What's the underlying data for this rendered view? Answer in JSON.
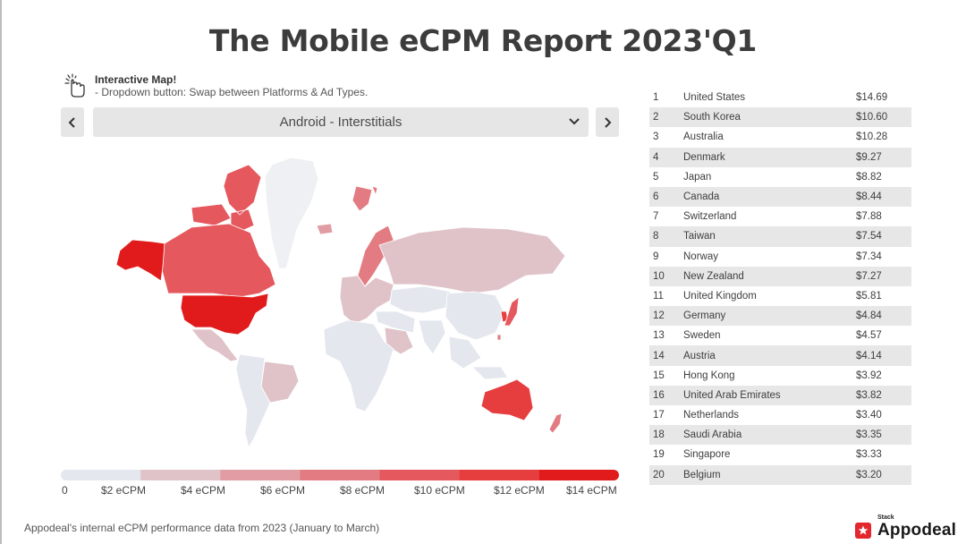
{
  "title": "The Mobile eCPM Report 2023'Q1",
  "hint": {
    "title": "Interactive Map!",
    "subtitle": "- Dropdown button: Swap between Platforms & Ad Types.",
    "icon": "pointing-hand-icon"
  },
  "selector": {
    "prev_icon": "chevron-left-icon",
    "next_icon": "chevron-right-icon",
    "selected": "Android - Interstitials",
    "dropdown_icon": "chevron-down-icon"
  },
  "colors": {
    "scale": [
      "#e4e7ee",
      "#e0c3c8",
      "#e19da3",
      "#e27c82",
      "#e5585d",
      "#e63d3f",
      "#e11b1b"
    ],
    "no_data": "#eef0f3",
    "brand": "#e3272d"
  },
  "chart_data": {
    "type": "choropleth",
    "title": "The Mobile eCPM Report 2023'Q1",
    "subtitle": "Android - Interstitials",
    "unit": "USD eCPM",
    "legend": {
      "labels": [
        "0",
        "$2 eCPM",
        "$4 eCPM",
        "$6 eCPM",
        "$8 eCPM",
        "$10 eCPM",
        "$12 eCPM",
        "$14 eCPM"
      ],
      "breaks": [
        0,
        2,
        4,
        6,
        8,
        10,
        12,
        14
      ]
    },
    "ranking": [
      {
        "rank": "1",
        "country": "United States",
        "value": "$14.69"
      },
      {
        "rank": "2",
        "country": "South Korea",
        "value": "$10.60"
      },
      {
        "rank": "3",
        "country": "Australia",
        "value": "$10.28"
      },
      {
        "rank": "4",
        "country": "Denmark",
        "value": "$9.27"
      },
      {
        "rank": "5",
        "country": "Japan",
        "value": "$8.82"
      },
      {
        "rank": "6",
        "country": "Canada",
        "value": "$8.44"
      },
      {
        "rank": "7",
        "country": "Switzerland",
        "value": "$7.88"
      },
      {
        "rank": "8",
        "country": "Taiwan",
        "value": "$7.54"
      },
      {
        "rank": "9",
        "country": "Norway",
        "value": "$7.34"
      },
      {
        "rank": "10",
        "country": "New Zealand",
        "value": "$7.27"
      },
      {
        "rank": "11",
        "country": "United Kingdom",
        "value": "$5.81"
      },
      {
        "rank": "12",
        "country": "Germany",
        "value": "$4.84"
      },
      {
        "rank": "13",
        "country": "Sweden",
        "value": "$4.57"
      },
      {
        "rank": "14",
        "country": "Austria",
        "value": "$4.14"
      },
      {
        "rank": "15",
        "country": "Hong Kong",
        "value": "$3.92"
      },
      {
        "rank": "16",
        "country": "United Arab Emirates",
        "value": "$3.82"
      },
      {
        "rank": "17",
        "country": "Netherlands",
        "value": "$3.40"
      },
      {
        "rank": "18",
        "country": "Saudi Arabia",
        "value": "$3.35"
      },
      {
        "rank": "19",
        "country": "Singapore",
        "value": "$3.33"
      },
      {
        "rank": "20",
        "country": "Belgium",
        "value": "$3.20"
      }
    ],
    "regions": [
      {
        "name": "United States",
        "value": 14.69
      },
      {
        "name": "Alaska",
        "value": 14.69
      },
      {
        "name": "Canada",
        "value": 8.44
      },
      {
        "name": "Canadian Arctic",
        "value": 8.44
      },
      {
        "name": "Greenland",
        "value": null
      },
      {
        "name": "Mexico",
        "value": 2.5
      },
      {
        "name": "South America",
        "value": 1.5
      },
      {
        "name": "Brazil",
        "value": 2.2
      },
      {
        "name": "Europe",
        "value": 3.5
      },
      {
        "name": "Scandinavia",
        "value": 6.5
      },
      {
        "name": "Iceland",
        "value": 5.5
      },
      {
        "name": "Svalbard",
        "value": 6.0
      },
      {
        "name": "Russia",
        "value": 2.6
      },
      {
        "name": "Central Asia",
        "value": 1.2
      },
      {
        "name": "China",
        "value": 1.1
      },
      {
        "name": "Japan",
        "value": 8.82
      },
      {
        "name": "South Korea",
        "value": 10.6
      },
      {
        "name": "Taiwan",
        "value": 7.54
      },
      {
        "name": "India",
        "value": 0.9
      },
      {
        "name": "Middle East",
        "value": 1.5
      },
      {
        "name": "Saudi Arabia",
        "value": 3.35
      },
      {
        "name": "Africa",
        "value": 0.8
      },
      {
        "name": "Southeast Asia",
        "value": 1.5
      },
      {
        "name": "Australia",
        "value": 10.28
      },
      {
        "name": "New Zealand",
        "value": 7.27
      }
    ]
  },
  "footer": {
    "note": "Appodeal's internal eCPM performance data from 2023 (January to March)",
    "brand_stack": "Stack",
    "brand_name": "Appodeal",
    "brand_icon": "star-logo-icon"
  }
}
